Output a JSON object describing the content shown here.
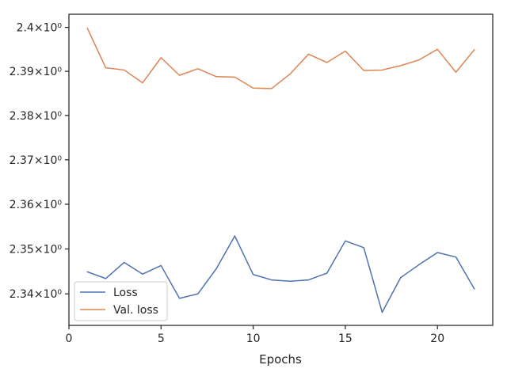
{
  "chart_data": {
    "type": "line",
    "xlabel": "Epochs",
    "ylabel": "",
    "xlim": [
      0,
      23
    ],
    "ylim": [
      2.333,
      2.403
    ],
    "y_scale": "log",
    "grid": false,
    "legend_position": "lower-left",
    "xticks": [
      0,
      5,
      10,
      15,
      20
    ],
    "xtick_labels": [
      "0",
      "5",
      "10",
      "15",
      "20"
    ],
    "yticks": [
      2.34,
      2.35,
      2.36,
      2.37,
      2.38,
      2.39,
      2.4
    ],
    "ytick_labels": [
      "2.34×10⁰",
      "2.35×10⁰",
      "2.36×10⁰",
      "2.37×10⁰",
      "2.38×10⁰",
      "2.39×10⁰",
      "2.4×10⁰"
    ],
    "x": [
      1,
      2,
      3,
      4,
      5,
      6,
      7,
      8,
      9,
      10,
      11,
      12,
      13,
      14,
      15,
      16,
      17,
      18,
      19,
      20,
      21,
      22
    ],
    "series": [
      {
        "name": "Loss",
        "color": "#4c72b0",
        "values": [
          2.3449,
          2.3434,
          2.347,
          2.3444,
          2.3463,
          2.339,
          2.34,
          2.3456,
          2.3529,
          2.3443,
          2.3431,
          2.3428,
          2.3431,
          2.3446,
          2.3518,
          2.3503,
          2.3359,
          2.3436,
          2.3465,
          2.3492,
          2.3482,
          2.3411
        ]
      },
      {
        "name": "Val. loss",
        "color": "#dd8452",
        "values": [
          2.3998,
          2.3908,
          2.3903,
          2.3874,
          2.3931,
          2.3891,
          2.3906,
          2.3888,
          2.3887,
          2.3862,
          2.3861,
          2.3894,
          2.3939,
          2.392,
          2.3946,
          2.3902,
          2.3903,
          2.3913,
          2.3926,
          2.395,
          2.3898,
          2.3949
        ]
      }
    ]
  }
}
